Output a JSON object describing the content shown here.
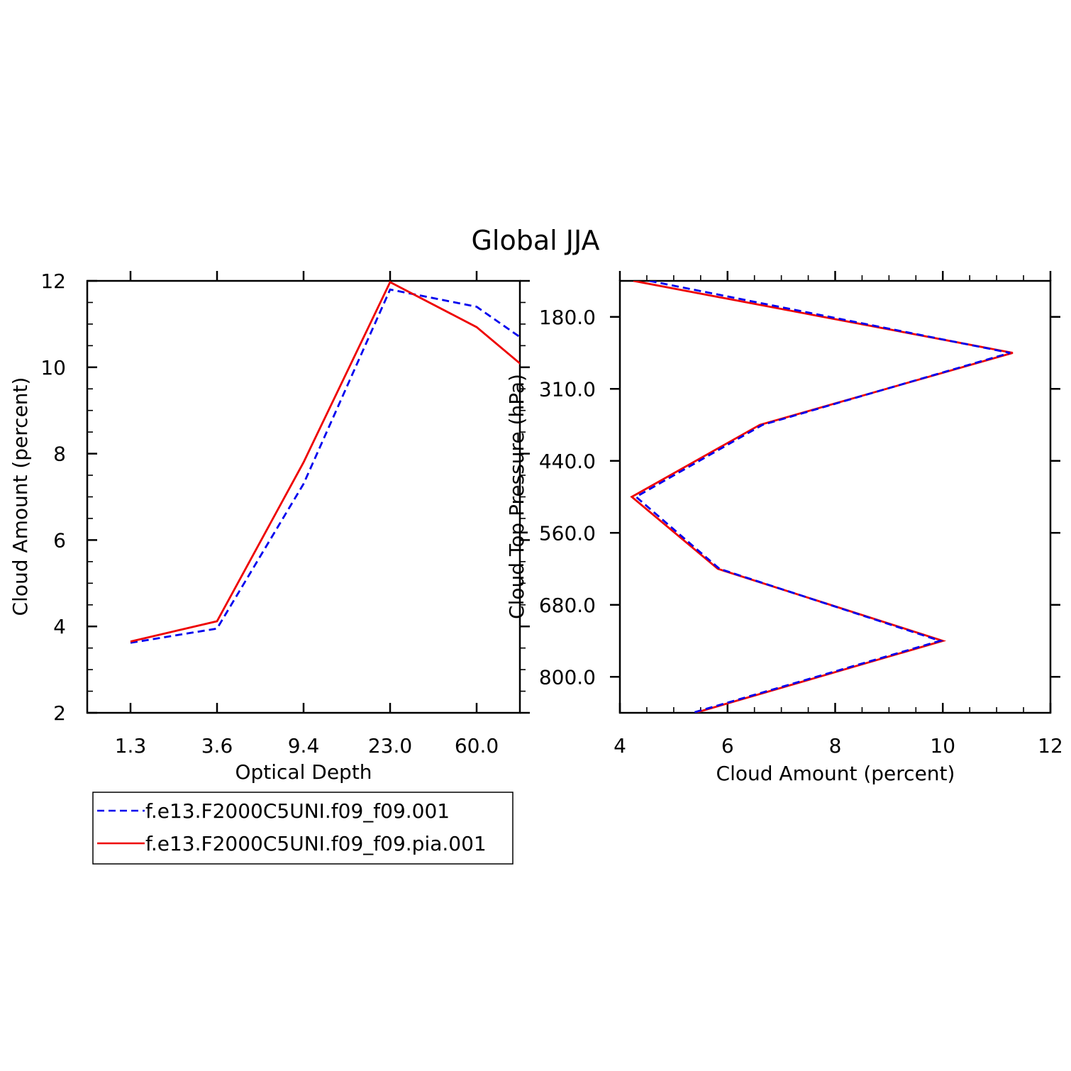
{
  "title": "Global JJA",
  "colors": {
    "model_a": "#0000ee",
    "model_b": "#ee0000"
  },
  "legend": {
    "entries": [
      {
        "label": "f.e13.F2000C5UNI.f09_f09.001",
        "color": "#0000ee",
        "dash": "dashed"
      },
      {
        "label": "f.e13.F2000C5UNI.f09_f09.pia.001",
        "color": "#ee0000",
        "dash": "solid"
      }
    ]
  },
  "chart_data": [
    {
      "type": "line",
      "xlabel": "Optical Depth",
      "ylabel": "Cloud Amount (percent)",
      "x_categories": [
        "1.3",
        "3.6",
        "9.4",
        "23.0",
        "60.0"
      ],
      "ylim": [
        2,
        12
      ],
      "yticks": [
        "2",
        "4",
        "6",
        "8",
        "10",
        "12"
      ],
      "series": [
        {
          "name": "f.e13.F2000C5UNI.f09_f09.001",
          "x": [
            0.5,
            1.5,
            2.5,
            3.5,
            4.5,
            5.5
          ],
          "values": [
            3.62,
            3.95,
            7.3,
            11.8,
            11.4,
            10.0
          ]
        },
        {
          "name": "f.e13.F2000C5UNI.f09_f09.pia.001",
          "x": [
            0.5,
            1.5,
            2.5,
            3.5,
            4.5,
            5.5
          ],
          "values": [
            3.65,
            4.12,
            7.8,
            11.97,
            10.93,
            9.25
          ]
        }
      ]
    },
    {
      "type": "line",
      "xlabel": "Cloud Amount (percent)",
      "ylabel": "Cloud Top Pressure (hPa)",
      "xlim": [
        4,
        12
      ],
      "xticks": [
        "4",
        "6",
        "8",
        "10",
        "12"
      ],
      "y_categories": [
        "180.0",
        "310.0",
        "440.0",
        "560.0",
        "680.0",
        "800.0"
      ],
      "series": [
        {
          "name": "f.e13.F2000C5UNI.f09_f09.001",
          "y": [
            0,
            1,
            2,
            3,
            4,
            5,
            6
          ],
          "values": [
            4.55,
            11.25,
            6.65,
            4.3,
            5.85,
            9.95,
            5.35
          ]
        },
        {
          "name": "f.e13.F2000C5UNI.f09_f09.pia.001",
          "y": [
            0,
            1,
            2,
            3,
            4,
            5,
            6
          ],
          "values": [
            4.25,
            11.3,
            6.6,
            4.22,
            5.82,
            10.0,
            5.4
          ]
        }
      ]
    }
  ]
}
